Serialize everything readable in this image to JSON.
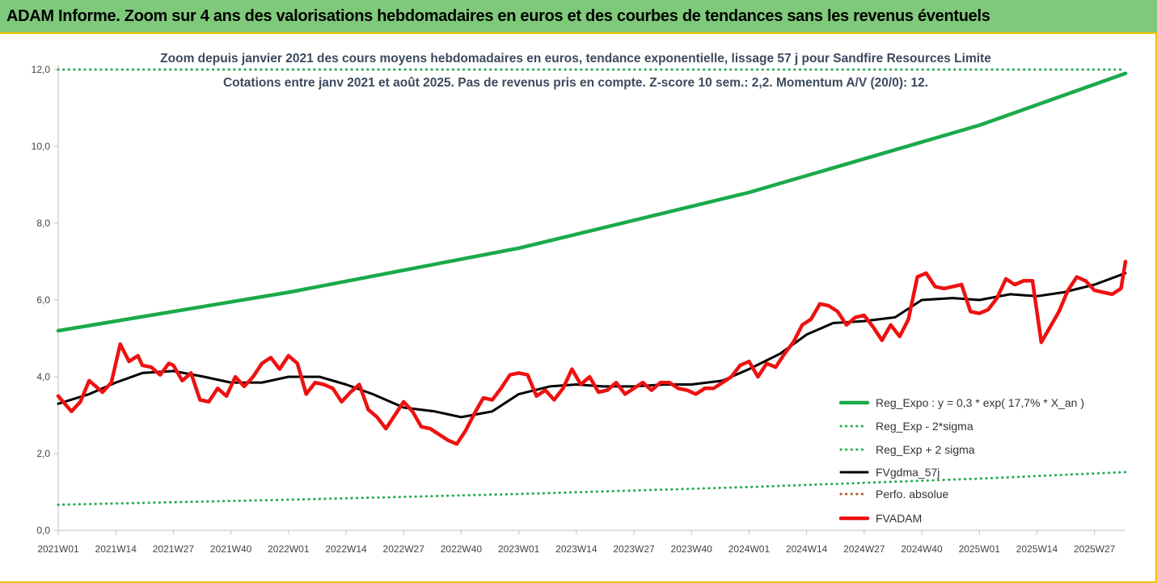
{
  "banner_title": "ADAM Informe. Zoom sur 4 ans des valorisations hebdomadaires en euros et des courbes de tendances sans les revenus éventuels",
  "colors": {
    "banner": "#7fc97a",
    "trend": "#1aaa4a",
    "band": "#1aaa4a",
    "smooth": "#000000",
    "adam": "#ee1111",
    "perfo": "#b5501e",
    "frame": "#f2c200"
  },
  "chart_data": {
    "type": "line",
    "title": "Zoom depuis janvier 2021 des cours moyens hebdomadaires en euros, tendance exponentielle, lissage 57 j pour Sandfire Resources Limite",
    "subtitle": "Cotations entre janv 2021 et août 2025. Pas de revenus pris en compte. Z-score 10 sem.: 2,2. Momentum A/V (20/0): 12.",
    "xlabel": "",
    "ylabel": "",
    "ylim": [
      0,
      12
    ],
    "yticks": [
      "0,0",
      "2,0",
      "4,0",
      "6,0",
      "8,0",
      "10,0",
      "12,0"
    ],
    "xticks": [
      "2021W01",
      "2021W14",
      "2021W27",
      "2021W40",
      "2022W01",
      "2022W14",
      "2022W27",
      "2022W40",
      "2023W01",
      "2023W14",
      "2023W27",
      "2023W40",
      "2024W01",
      "2024W14",
      "2024W27",
      "2024W40",
      "2025W01",
      "2025W14",
      "2025W27"
    ],
    "x_start": "2021W01",
    "x_end": "2025W34",
    "legend_position": "bottom-right",
    "grid": false,
    "series": [
      {
        "name": "Reg_Expo : y = 0,3 * exp( 17,7% *  X_an )",
        "style": "solid-thick",
        "x": [
          "2021W01",
          "2022W01",
          "2023W01",
          "2024W01",
          "2025W01",
          "2025W34"
        ],
        "values": [
          5.2,
          6.2,
          7.35,
          8.8,
          10.55,
          11.9
        ]
      },
      {
        "name": "Reg_Exp - 2*sigma",
        "style": "dotted",
        "x": [
          "2021W01",
          "2022W01",
          "2023W01",
          "2024W01",
          "2025W01",
          "2025W34"
        ],
        "values": [
          0.67,
          0.8,
          0.95,
          1.13,
          1.35,
          1.52
        ]
      },
      {
        "name": "Reg_Exp + 2 sigma",
        "style": "dotted",
        "x": [
          "2021W01",
          "2021W25",
          "2025W25",
          "2025W34"
        ],
        "values": [
          12,
          12,
          12,
          12
        ]
      },
      {
        "name": "FVgdma_57j",
        "style": "solid",
        "x": [
          "2021W01",
          "2021W08",
          "2021W14",
          "2021W20",
          "2021W27",
          "2021W34",
          "2021W40",
          "2021W47",
          "2022W01",
          "2022W08",
          "2022W14",
          "2022W20",
          "2022W27",
          "2022W34",
          "2022W40",
          "2022W47",
          "2023W01",
          "2023W08",
          "2023W14",
          "2023W20",
          "2023W27",
          "2023W34",
          "2023W40",
          "2023W47",
          "2024W01",
          "2024W08",
          "2024W14",
          "2024W20",
          "2024W27",
          "2024W34",
          "2024W40",
          "2024W47",
          "2025W01",
          "2025W08",
          "2025W14",
          "2025W20",
          "2025W27",
          "2025W34"
        ],
        "values": [
          3.3,
          3.55,
          3.85,
          4.1,
          4.15,
          4.0,
          3.85,
          3.85,
          4.0,
          4.0,
          3.8,
          3.55,
          3.2,
          3.1,
          2.95,
          3.1,
          3.55,
          3.75,
          3.8,
          3.75,
          3.75,
          3.8,
          3.8,
          3.9,
          4.2,
          4.6,
          5.1,
          5.4,
          5.45,
          5.55,
          6.0,
          6.05,
          6.0,
          6.15,
          6.1,
          6.2,
          6.4,
          6.7
        ]
      },
      {
        "name": "Perfo. absolue",
        "style": "dotted",
        "x": [],
        "values": []
      },
      {
        "name": "FVADAM",
        "style": "solid-thick",
        "x": [
          "2021W01",
          "2021W04",
          "2021W06",
          "2021W08",
          "2021W11",
          "2021W13",
          "2021W15",
          "2021W17",
          "2021W19",
          "2021W20",
          "2021W22",
          "2021W24",
          "2021W26",
          "2021W27",
          "2021W29",
          "2021W31",
          "2021W33",
          "2021W35",
          "2021W37",
          "2021W39",
          "2021W41",
          "2021W43",
          "2021W45",
          "2021W47",
          "2021W49",
          "2021W51",
          "2022W01",
          "2022W03",
          "2022W05",
          "2022W07",
          "2022W09",
          "2022W11",
          "2022W13",
          "2022W15",
          "2022W17",
          "2022W19",
          "2022W21",
          "2022W23",
          "2022W25",
          "2022W27",
          "2022W29",
          "2022W31",
          "2022W33",
          "2022W35",
          "2022W37",
          "2022W39",
          "2022W41",
          "2022W43",
          "2022W45",
          "2022W47",
          "2022W49",
          "2022W51",
          "2023W01",
          "2023W03",
          "2023W05",
          "2023W07",
          "2023W09",
          "2023W11",
          "2023W13",
          "2023W15",
          "2023W17",
          "2023W19",
          "2023W21",
          "2023W23",
          "2023W25",
          "2023W27",
          "2023W29",
          "2023W31",
          "2023W33",
          "2023W35",
          "2023W37",
          "2023W39",
          "2023W41",
          "2023W43",
          "2023W45",
          "2023W47",
          "2023W49",
          "2023W51",
          "2024W01",
          "2024W03",
          "2024W05",
          "2024W07",
          "2024W09",
          "2024W11",
          "2024W13",
          "2024W15",
          "2024W17",
          "2024W19",
          "2024W21",
          "2024W23",
          "2024W25",
          "2024W27",
          "2024W29",
          "2024W31",
          "2024W33",
          "2024W35",
          "2024W37",
          "2024W39",
          "2024W41",
          "2024W43",
          "2024W45",
          "2024W47",
          "2024W49",
          "2024W51",
          "2025W01",
          "2025W03",
          "2025W05",
          "2025W07",
          "2025W09",
          "2025W11",
          "2025W13",
          "2025W15",
          "2025W17",
          "2025W19",
          "2025W21",
          "2025W23",
          "2025W25",
          "2025W27",
          "2025W29",
          "2025W31",
          "2025W33",
          "2025W34"
        ],
        "values": [
          3.5,
          3.1,
          3.35,
          3.9,
          3.6,
          3.85,
          4.85,
          4.4,
          4.55,
          4.3,
          4.25,
          4.05,
          4.35,
          4.3,
          3.9,
          4.1,
          3.4,
          3.35,
          3.7,
          3.5,
          4.0,
          3.75,
          4.0,
          4.35,
          4.5,
          4.2,
          4.55,
          4.35,
          3.55,
          3.85,
          3.8,
          3.7,
          3.35,
          3.6,
          3.8,
          3.15,
          2.95,
          2.65,
          3.0,
          3.35,
          3.1,
          2.7,
          2.65,
          2.5,
          2.35,
          2.25,
          2.6,
          3.05,
          3.45,
          3.4,
          3.7,
          4.05,
          4.1,
          4.05,
          3.5,
          3.65,
          3.4,
          3.7,
          4.2,
          3.8,
          4.0,
          3.6,
          3.65,
          3.85,
          3.55,
          3.7,
          3.85,
          3.65,
          3.85,
          3.85,
          3.7,
          3.65,
          3.55,
          3.7,
          3.7,
          3.85,
          4.0,
          4.3,
          4.4,
          4.0,
          4.35,
          4.25,
          4.6,
          4.9,
          5.35,
          5.5,
          5.9,
          5.85,
          5.7,
          5.35,
          5.55,
          5.6,
          5.3,
          4.95,
          5.35,
          5.05,
          5.5,
          6.6,
          6.7,
          6.35,
          6.3,
          6.35,
          6.4,
          5.7,
          5.65,
          5.75,
          6.05,
          6.55,
          6.4,
          6.5,
          6.5,
          4.9,
          5.3,
          5.7,
          6.25,
          6.6,
          6.5,
          6.25,
          6.2,
          6.15,
          6.3,
          7.0
        ]
      }
    ]
  }
}
